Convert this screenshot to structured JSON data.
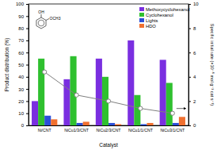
{
  "chart_data": {
    "type": "bar",
    "categories": [
      "Ni/CNT",
      "NiCu1/3/CNT",
      "NiCu2/3/CNT",
      "NiCu1/1/CNT",
      "NiCu3/1/CNT"
    ],
    "x_label": "Catalyst",
    "y_label": "Product distribution (%)",
    "y2_label": "Specific initial rate (×10⁻⁶ mol g⁻¹ cat s⁻¹)",
    "ylim": [
      0,
      100
    ],
    "yticks": [
      0,
      10,
      20,
      30,
      40,
      50,
      60,
      70,
      80,
      90,
      100
    ],
    "y2lim": [
      0,
      10
    ],
    "y2ticks": [
      0,
      2,
      4,
      6,
      8,
      10
    ],
    "legend": "upper right",
    "annotations": [
      "OH",
      "OCH3"
    ],
    "series": [
      {
        "name": "Methoxycyclohexanol",
        "color": "#7a2fe0",
        "values": [
          20,
          38,
          55,
          70,
          54
        ]
      },
      {
        "name": "Cyclohexanol",
        "color": "#2fc02f",
        "values": [
          55,
          57,
          40,
          25,
          35
        ]
      },
      {
        "name": "Lights",
        "color": "#2b4fd8",
        "values": [
          8,
          2,
          2,
          1,
          2
        ]
      },
      {
        "name": "HDO",
        "color": "#f07030",
        "values": [
          5,
          3,
          1,
          2,
          7
        ]
      },
      {
        "type": "line",
        "axis": "y2",
        "color": "#808080",
        "marker": "circle",
        "values": [
          4.4,
          2.5,
          2.0,
          1.4,
          1.0
        ]
      }
    ]
  }
}
